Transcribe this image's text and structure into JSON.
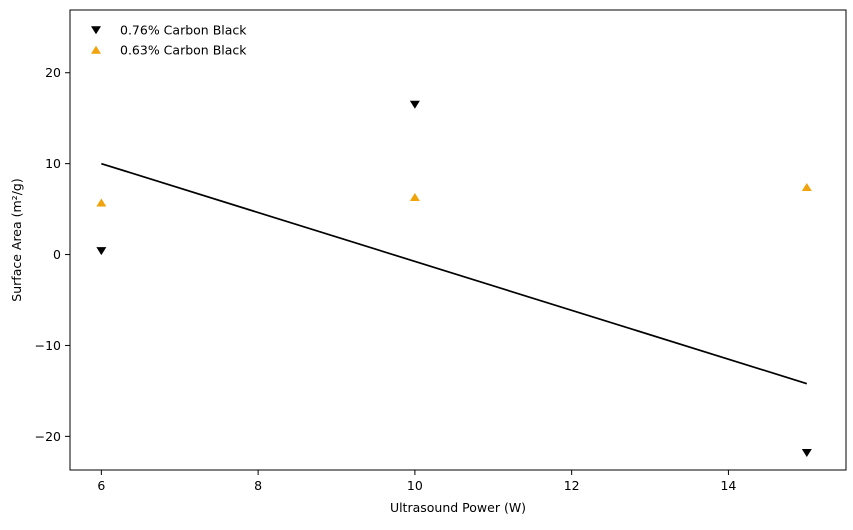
{
  "chart_data": {
    "type": "scatter",
    "title": "",
    "xlabel": "Ultrasound Power (W)",
    "ylabel": "Surface Area (m²/g)",
    "xlim": [
      5.6,
      15.5
    ],
    "ylim": [
      -23.7,
      26.9
    ],
    "xticks": [
      6,
      8,
      10,
      12,
      14
    ],
    "yticks": [
      -20,
      -10,
      0,
      10,
      20
    ],
    "grid": false,
    "legend_position": "top-left",
    "series": [
      {
        "name": "0.76% Carbon Black",
        "marker": "triangle-down",
        "color": "#000000",
        "x": [
          6,
          10,
          15
        ],
        "y": [
          0.4,
          16.5,
          -21.8
        ]
      },
      {
        "name": "0.63% Carbon Black",
        "marker": "triangle-up",
        "color": "#f0a30a",
        "x": [
          6,
          10,
          15
        ],
        "y": [
          5.7,
          6.3,
          7.4
        ]
      }
    ],
    "fit_line": {
      "color": "#000000",
      "x": [
        6,
        15
      ],
      "y": [
        10.0,
        -14.2
      ]
    }
  }
}
